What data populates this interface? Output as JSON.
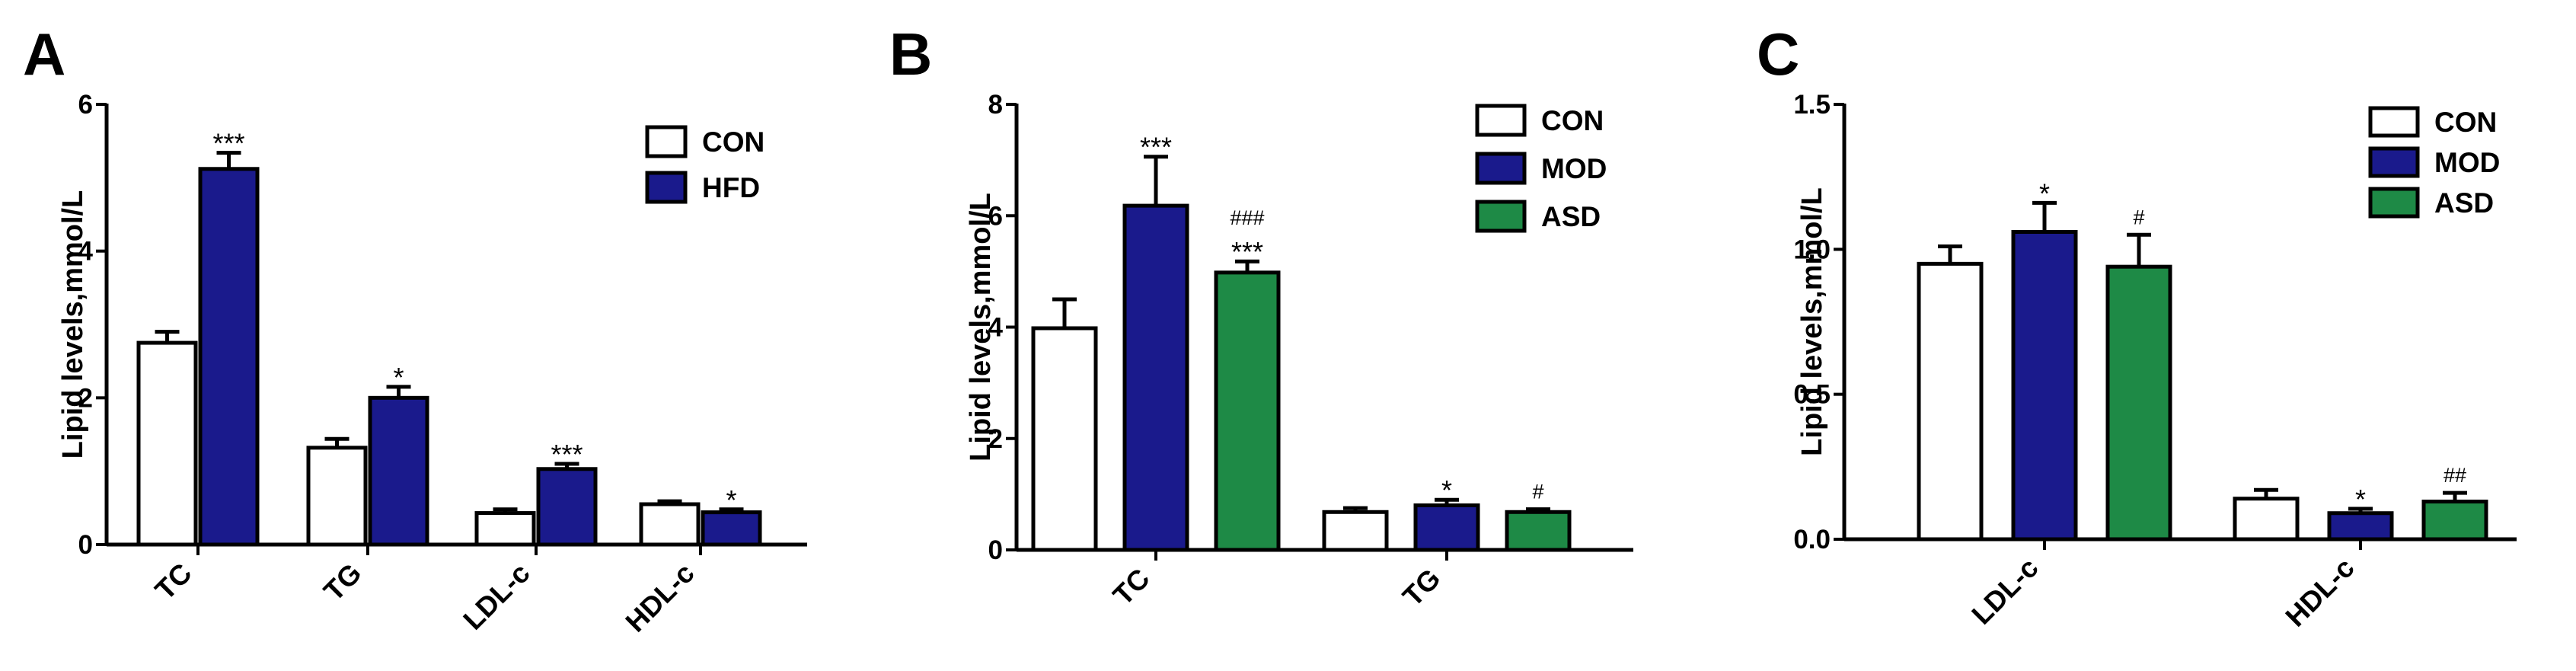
{
  "chart_data": [
    {
      "type": "bar",
      "panel": "A",
      "ylabel": "Lipid levels,mmol/L",
      "ylim": [
        0,
        6
      ],
      "yticks": [
        "0",
        "2",
        "4",
        "6"
      ],
      "categories": [
        "TC",
        "TG",
        "LDL-c",
        "HDL-c"
      ],
      "legend_position": "top-right",
      "series": [
        {
          "name": "CON",
          "color": "#ffffff",
          "values": [
            2.75,
            1.32,
            0.43,
            0.55
          ],
          "errors": [
            0.15,
            0.12,
            0.05,
            0.04
          ],
          "annotations": [
            "",
            "",
            "",
            ""
          ]
        },
        {
          "name": "HFD",
          "color": "#1a1a8c",
          "values": [
            5.12,
            2.0,
            1.03,
            0.44
          ],
          "errors": [
            0.22,
            0.15,
            0.07,
            0.04
          ],
          "annotations": [
            "***",
            "*",
            "***",
            "*"
          ]
        }
      ]
    },
    {
      "type": "bar",
      "panel": "B",
      "ylabel": "Lipid levels,mmol/L",
      "ylim": [
        0,
        8
      ],
      "yticks": [
        "0",
        "2",
        "4",
        "6",
        "8"
      ],
      "categories": [
        "TC",
        "TG"
      ],
      "legend_position": "top-right",
      "series": [
        {
          "name": "CON",
          "color": "#ffffff",
          "values": [
            3.98,
            0.68
          ],
          "errors": [
            0.52,
            0.07
          ],
          "annotations": [
            "",
            ""
          ]
        },
        {
          "name": "MOD",
          "color": "#1a1a8c",
          "values": [
            6.18,
            0.8
          ],
          "errors": [
            0.88,
            0.1
          ],
          "annotations": [
            "***",
            "*"
          ]
        },
        {
          "name": "ASD",
          "color": "#1e8a46",
          "values": [
            4.98,
            0.68
          ],
          "errors": [
            0.2,
            0.05
          ],
          "annotations": [
            "###\n***",
            "#"
          ]
        }
      ]
    },
    {
      "type": "bar",
      "panel": "C",
      "ylabel": "Lipid levels,mmol/L",
      "ylim": [
        0,
        1.5
      ],
      "yticks": [
        "0.0",
        "0.5",
        "1.0",
        "1.5"
      ],
      "categories": [
        "LDL-c",
        "HDL-c"
      ],
      "legend_position": "top-right",
      "series": [
        {
          "name": "CON",
          "color": "#ffffff",
          "values": [
            0.95,
            0.14
          ],
          "errors": [
            0.06,
            0.03
          ],
          "annotations": [
            "",
            ""
          ]
        },
        {
          "name": "MOD",
          "color": "#1a1a8c",
          "values": [
            1.06,
            0.09
          ],
          "errors": [
            0.1,
            0.015
          ],
          "annotations": [
            "*",
            "*"
          ]
        },
        {
          "name": "ASD",
          "color": "#1e8a46",
          "values": [
            0.94,
            0.13
          ],
          "errors": [
            0.11,
            0.03
          ],
          "annotations": [
            "#",
            "##"
          ]
        }
      ]
    }
  ]
}
